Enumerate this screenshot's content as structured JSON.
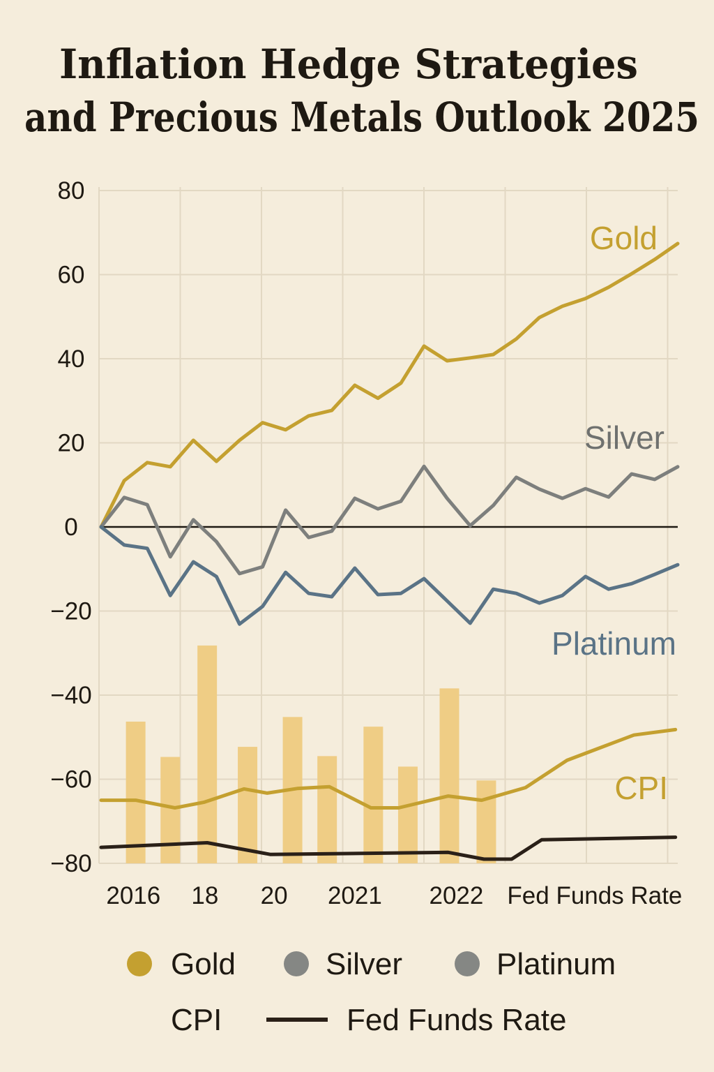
{
  "title_line1": "Inflation Hedge Strategies",
  "title_line2": "and Precious Metals Outlook 2025",
  "chart_data": {
    "type": "line",
    "title": "Inflation Hedge Strategies and Precious Metals Outlook 2025",
    "xlabel": "",
    "ylabel": "",
    "xlim": [
      0,
      25
    ],
    "ylim": [
      -80,
      80
    ],
    "y_ticks": [
      80,
      60,
      40,
      20,
      0,
      -20,
      -40,
      -60,
      -80
    ],
    "x_tick_labels": [
      {
        "x": 1.4,
        "label": "2016"
      },
      {
        "x": 4.5,
        "label": "18"
      },
      {
        "x": 7.5,
        "label": "20"
      },
      {
        "x": 11.0,
        "label": "2021"
      },
      {
        "x": 15.4,
        "label": "2022"
      },
      {
        "x": 21.4,
        "label": "Fed Funds Rate"
      }
    ],
    "grid": true,
    "zero_line": true,
    "series": [
      {
        "name": "Gold",
        "type": "line",
        "color": "#c4a030",
        "x": [
          0,
          1,
          2,
          3,
          4,
          5,
          6,
          7,
          8,
          9,
          10,
          11,
          12,
          13,
          14,
          15,
          16,
          17,
          18,
          19,
          20,
          21,
          22,
          23,
          24,
          25
        ],
        "values": [
          0,
          11,
          15.3,
          14.3,
          20.6,
          15.6,
          20.6,
          24.8,
          23.1,
          26.4,
          27.7,
          33.7,
          30.6,
          34.2,
          43,
          39.5,
          40.2,
          41,
          44.7,
          49.8,
          52.5,
          54.3,
          57,
          60.2,
          63.6,
          67.4
        ]
      },
      {
        "name": "Silver",
        "type": "line",
        "color": "#7d7f7d",
        "x": [
          0,
          1,
          2,
          3,
          4,
          5,
          6,
          7,
          8,
          9,
          10,
          11,
          12,
          13,
          14,
          15,
          16,
          17,
          18,
          19,
          20,
          21,
          22,
          23,
          24,
          25
        ],
        "values": [
          0,
          7,
          5.3,
          -7.1,
          1.7,
          -3.5,
          -11.1,
          -9.5,
          4,
          -2.5,
          -1,
          6.8,
          4.3,
          6.1,
          14.4,
          6.8,
          0.3,
          5.1,
          11.8,
          9,
          6.8,
          9.1,
          7.1,
          12.6,
          11.3,
          14.3
        ]
      },
      {
        "name": "Platinum",
        "type": "line",
        "color": "#5a7386",
        "x": [
          0,
          1,
          2,
          3,
          4,
          5,
          6,
          7,
          8,
          9,
          10,
          11,
          12,
          13,
          14,
          15,
          16,
          17,
          18,
          19,
          20,
          21,
          22,
          23,
          24,
          25
        ],
        "values": [
          0,
          -4.3,
          -5.1,
          -16.3,
          -8.3,
          -11.8,
          -23.1,
          -18.9,
          -10.8,
          -15.8,
          -16.6,
          -9.8,
          -16.1,
          -15.8,
          -12.3,
          -17.6,
          -22.9,
          -14.8,
          -15.8,
          -18.1,
          -16.3,
          -11.8,
          -14.8,
          -13.5,
          -11.3,
          -9
        ]
      },
      {
        "type": "bar",
        "color": "#efcd85",
        "x": [
          1.5,
          3.0,
          4.6,
          6.35,
          8.3,
          9.8,
          11.8,
          13.3,
          15.1,
          16.7
        ],
        "values": [
          -46.3,
          -54.7,
          -28.2,
          -52.3,
          -45.2,
          -54.5,
          -47.5,
          -57,
          -38.4,
          -60.3
        ],
        "base": -80
      },
      {
        "name": "CPI",
        "type": "line",
        "color": "#c4a030",
        "x": [
          0,
          1.5,
          3.2,
          4.45,
          6.2,
          7.2,
          8.5,
          9.9,
          11.7,
          12.9,
          15.05,
          16.5,
          18.4,
          20.2,
          21.5,
          23.1,
          24.9
        ],
        "values": [
          -65,
          -65,
          -66.8,
          -65.5,
          -62.3,
          -63.3,
          -62.2,
          -61.8,
          -66.8,
          -66.8,
          -64,
          -65,
          -62,
          -55.5,
          -52.8,
          -49.5,
          -48.2
        ]
      },
      {
        "name": "Fed Funds Rate",
        "type": "line",
        "color": "#2a2018",
        "x": [
          0,
          4.6,
          7.35,
          15.05,
          16.6,
          17.8,
          19.1,
          24.9
        ],
        "values": [
          -76.2,
          -75.1,
          -77.9,
          -77.4,
          -79,
          -79,
          -74.4,
          -73.8
        ]
      }
    ],
    "series_labels": [
      {
        "text": "Gold",
        "color": "#c4a030"
      },
      {
        "text": "Silver",
        "color": "#6f716f"
      },
      {
        "text": "Platinum",
        "color": "#5a7386"
      },
      {
        "text": "CPI",
        "color": "#c4a030"
      }
    ],
    "legend": {
      "placement": "bottom",
      "items": [
        {
          "label": "Gold",
          "marker": "dot",
          "color": "#c4a030"
        },
        {
          "label": "Silver",
          "marker": "dot",
          "color": "#858784"
        },
        {
          "label": "Platinum",
          "marker": "dot",
          "color": "#858784"
        },
        {
          "label": "CPI",
          "marker": "none",
          "color": ""
        },
        {
          "label": "Fed Funds Rate",
          "marker": "line",
          "color": "#2a2018"
        }
      ]
    }
  }
}
